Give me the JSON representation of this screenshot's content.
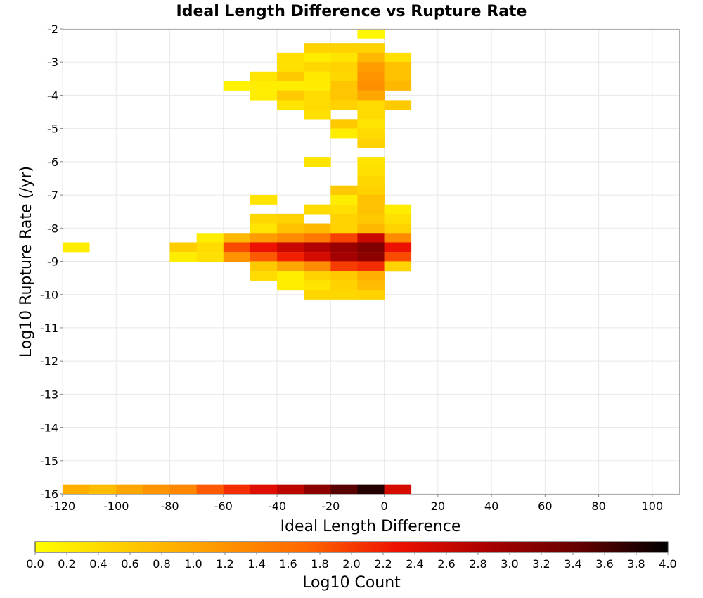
{
  "chart_data": {
    "type": "heatmap",
    "title": "Ideal Length Difference vs Rupture Rate",
    "xlabel": "Ideal Length Difference",
    "ylabel": "Log10 Rupture Rate (/yr)",
    "xlim": [
      -120,
      110
    ],
    "ylim": [
      -16,
      -2
    ],
    "x_ticks": [
      "-120",
      "-100",
      "-80",
      "-60",
      "-40",
      "-20",
      "0",
      "20",
      "40",
      "60",
      "80",
      "100"
    ],
    "x_tick_values": [
      -120,
      -100,
      -80,
      -60,
      -40,
      -20,
      0,
      20,
      40,
      60,
      80,
      100
    ],
    "y_ticks": [
      "-2",
      "-3",
      "-4",
      "-5",
      "-6",
      "-7",
      "-8",
      "-9",
      "-10",
      "-11",
      "-12",
      "-13",
      "-14",
      "-15",
      "-16"
    ],
    "y_tick_values": [
      -2,
      -3,
      -4,
      -5,
      -6,
      -7,
      -8,
      -9,
      -10,
      -11,
      -12,
      -13,
      -14,
      -15,
      -16
    ],
    "grid": true,
    "x_bin_width": 10,
    "y_bin_height": 0.2857,
    "colorbar": {
      "label": "Log10 Count",
      "min": 0.0,
      "max": 4.0,
      "ticks": [
        "0.0",
        "0.2",
        "0.4",
        "0.6",
        "0.8",
        "1.0",
        "1.2",
        "1.4",
        "1.6",
        "1.8",
        "2.0",
        "2.2",
        "2.4",
        "2.6",
        "2.8",
        "3.0",
        "3.2",
        "3.4",
        "3.6",
        "3.8",
        "4.0"
      ],
      "tick_values": [
        0.0,
        0.2,
        0.4,
        0.6,
        0.8,
        1.0,
        1.2,
        1.4,
        1.6,
        1.8,
        2.0,
        2.2,
        2.4,
        2.6,
        2.8,
        3.0,
        3.2,
        3.4,
        3.6,
        3.8,
        4.0
      ],
      "colormap": [
        "#ffff00",
        "#ffcc00",
        "#ff9900",
        "#ff6600",
        "#ee1100",
        "#aa0000",
        "#660000",
        "#000000"
      ]
    },
    "cells": [
      {
        "x": -10,
        "y": -2.14,
        "v": 0.1
      },
      {
        "x": -30,
        "y": -2.57,
        "v": 0.5
      },
      {
        "x": -20,
        "y": -2.57,
        "v": 0.5
      },
      {
        "x": -10,
        "y": -2.57,
        "v": 0.5
      },
      {
        "x": -40,
        "y": -2.86,
        "v": 0.35
      },
      {
        "x": -30,
        "y": -2.86,
        "v": 0.2
      },
      {
        "x": -20,
        "y": -2.86,
        "v": 0.3
      },
      {
        "x": -10,
        "y": -2.86,
        "v": 0.8
      },
      {
        "x": 0,
        "y": -2.86,
        "v": 0.35
      },
      {
        "x": -40,
        "y": -3.14,
        "v": 0.35
      },
      {
        "x": -30,
        "y": -3.14,
        "v": 0.45
      },
      {
        "x": -20,
        "y": -3.14,
        "v": 0.5
      },
      {
        "x": -10,
        "y": -3.14,
        "v": 1.1
      },
      {
        "x": 0,
        "y": -3.14,
        "v": 0.7
      },
      {
        "x": -50,
        "y": -3.43,
        "v": 0.3
      },
      {
        "x": -40,
        "y": -3.43,
        "v": 0.6
      },
      {
        "x": -30,
        "y": -3.43,
        "v": 0.25
      },
      {
        "x": -20,
        "y": -3.43,
        "v": 0.45
      },
      {
        "x": -10,
        "y": -3.43,
        "v": 1.2
      },
      {
        "x": 0,
        "y": -3.43,
        "v": 0.7
      },
      {
        "x": -60,
        "y": -3.71,
        "v": 0.15
      },
      {
        "x": -50,
        "y": -3.71,
        "v": 0.2
      },
      {
        "x": -40,
        "y": -3.71,
        "v": 0.2
      },
      {
        "x": -30,
        "y": -3.71,
        "v": 0.2
      },
      {
        "x": -20,
        "y": -3.71,
        "v": 0.65
      },
      {
        "x": -10,
        "y": -3.71,
        "v": 1.25
      },
      {
        "x": 0,
        "y": -3.71,
        "v": 0.8
      },
      {
        "x": -50,
        "y": -4.0,
        "v": 0.2
      },
      {
        "x": -40,
        "y": -4.0,
        "v": 0.6
      },
      {
        "x": -30,
        "y": -4.0,
        "v": 0.4
      },
      {
        "x": -20,
        "y": -4.0,
        "v": 0.65
      },
      {
        "x": -10,
        "y": -4.0,
        "v": 1.0
      },
      {
        "x": -40,
        "y": -4.29,
        "v": 0.3
      },
      {
        "x": -30,
        "y": -4.29,
        "v": 0.4
      },
      {
        "x": -20,
        "y": -4.29,
        "v": 0.5
      },
      {
        "x": -10,
        "y": -4.29,
        "v": 0.4
      },
      {
        "x": 0,
        "y": -4.29,
        "v": 0.6
      },
      {
        "x": -30,
        "y": -4.57,
        "v": 0.35
      },
      {
        "x": -10,
        "y": -4.57,
        "v": 0.4
      },
      {
        "x": -20,
        "y": -4.86,
        "v": 0.6
      },
      {
        "x": -10,
        "y": -4.86,
        "v": 0.3
      },
      {
        "x": -20,
        "y": -5.14,
        "v": 0.2
      },
      {
        "x": -10,
        "y": -5.14,
        "v": 0.4
      },
      {
        "x": -10,
        "y": -5.43,
        "v": 0.5
      },
      {
        "x": -30,
        "y": -6.0,
        "v": 0.3
      },
      {
        "x": -10,
        "y": -6.0,
        "v": 0.3
      },
      {
        "x": -10,
        "y": -6.29,
        "v": 0.35
      },
      {
        "x": -10,
        "y": -6.57,
        "v": 0.45
      },
      {
        "x": -20,
        "y": -6.86,
        "v": 0.6
      },
      {
        "x": -10,
        "y": -6.86,
        "v": 0.5
      },
      {
        "x": -50,
        "y": -7.14,
        "v": 0.3
      },
      {
        "x": -20,
        "y": -7.14,
        "v": 0.2
      },
      {
        "x": -10,
        "y": -7.14,
        "v": 0.7
      },
      {
        "x": -30,
        "y": -7.43,
        "v": 0.4
      },
      {
        "x": -20,
        "y": -7.43,
        "v": 0.35
      },
      {
        "x": -10,
        "y": -7.43,
        "v": 0.7
      },
      {
        "x": 0,
        "y": -7.43,
        "v": 0.2
      },
      {
        "x": -50,
        "y": -7.71,
        "v": 0.45
      },
      {
        "x": -40,
        "y": -7.71,
        "v": 0.5
      },
      {
        "x": -20,
        "y": -7.71,
        "v": 0.5
      },
      {
        "x": -10,
        "y": -7.71,
        "v": 0.6
      },
      {
        "x": 0,
        "y": -7.71,
        "v": 0.35
      },
      {
        "x": -50,
        "y": -8.0,
        "v": 0.3
      },
      {
        "x": -40,
        "y": -8.0,
        "v": 0.7
      },
      {
        "x": -30,
        "y": -8.0,
        "v": 0.8
      },
      {
        "x": -20,
        "y": -8.0,
        "v": 0.5
      },
      {
        "x": -10,
        "y": -8.0,
        "v": 0.8
      },
      {
        "x": 0,
        "y": -8.0,
        "v": 0.5
      },
      {
        "x": -70,
        "y": -8.29,
        "v": 0.2
      },
      {
        "x": -60,
        "y": -8.29,
        "v": 0.8
      },
      {
        "x": -50,
        "y": -8.29,
        "v": 1.1
      },
      {
        "x": -40,
        "y": -8.29,
        "v": 1.3
      },
      {
        "x": -30,
        "y": -8.29,
        "v": 1.5
      },
      {
        "x": -20,
        "y": -8.29,
        "v": 1.95
      },
      {
        "x": -10,
        "y": -8.29,
        "v": 2.6
      },
      {
        "x": 0,
        "y": -8.29,
        "v": 1.3
      },
      {
        "x": -120,
        "y": -8.57,
        "v": 0.2
      },
      {
        "x": -80,
        "y": -8.57,
        "v": 0.55
      },
      {
        "x": -70,
        "y": -8.57,
        "v": 0.4
      },
      {
        "x": -60,
        "y": -8.57,
        "v": 1.9
      },
      {
        "x": -50,
        "y": -8.57,
        "v": 2.3
      },
      {
        "x": -40,
        "y": -8.57,
        "v": 2.6
      },
      {
        "x": -30,
        "y": -8.57,
        "v": 2.8
      },
      {
        "x": -20,
        "y": -8.57,
        "v": 3.0
      },
      {
        "x": -10,
        "y": -8.57,
        "v": 3.2
      },
      {
        "x": 0,
        "y": -8.57,
        "v": 2.3
      },
      {
        "x": -80,
        "y": -8.86,
        "v": 0.2
      },
      {
        "x": -70,
        "y": -8.86,
        "v": 0.35
      },
      {
        "x": -60,
        "y": -8.86,
        "v": 1.2
      },
      {
        "x": -50,
        "y": -8.86,
        "v": 1.8
      },
      {
        "x": -40,
        "y": -8.86,
        "v": 2.2
      },
      {
        "x": -30,
        "y": -8.86,
        "v": 2.5
      },
      {
        "x": -20,
        "y": -8.86,
        "v": 2.9
      },
      {
        "x": -10,
        "y": -8.86,
        "v": 3.1
      },
      {
        "x": 0,
        "y": -8.86,
        "v": 1.9
      },
      {
        "x": -50,
        "y": -9.14,
        "v": 0.6
      },
      {
        "x": -40,
        "y": -9.14,
        "v": 1.0
      },
      {
        "x": -30,
        "y": -9.14,
        "v": 1.3
      },
      {
        "x": -20,
        "y": -9.14,
        "v": 2.0
      },
      {
        "x": -10,
        "y": -9.14,
        "v": 2.1
      },
      {
        "x": 0,
        "y": -9.14,
        "v": 0.5
      },
      {
        "x": -50,
        "y": -9.43,
        "v": 0.4
      },
      {
        "x": -40,
        "y": -9.43,
        "v": 0.2
      },
      {
        "x": -30,
        "y": -9.43,
        "v": 0.5
      },
      {
        "x": -20,
        "y": -9.43,
        "v": 0.6
      },
      {
        "x": -10,
        "y": -9.43,
        "v": 0.9
      },
      {
        "x": -40,
        "y": -9.71,
        "v": 0.2
      },
      {
        "x": -30,
        "y": -9.71,
        "v": 0.3
      },
      {
        "x": -20,
        "y": -9.71,
        "v": 0.5
      },
      {
        "x": -10,
        "y": -9.71,
        "v": 0.75
      },
      {
        "x": -30,
        "y": -10.0,
        "v": 0.45
      },
      {
        "x": -20,
        "y": -10.0,
        "v": 0.45
      },
      {
        "x": -10,
        "y": -10.0,
        "v": 0.5
      },
      {
        "x": -120,
        "y": -15.86,
        "v": 0.9
      },
      {
        "x": -110,
        "y": -15.86,
        "v": 0.75
      },
      {
        "x": -100,
        "y": -15.86,
        "v": 1.0
      },
      {
        "x": -90,
        "y": -15.86,
        "v": 1.2
      },
      {
        "x": -80,
        "y": -15.86,
        "v": 1.35
      },
      {
        "x": -70,
        "y": -15.86,
        "v": 1.8
      },
      {
        "x": -60,
        "y": -15.86,
        "v": 2.1
      },
      {
        "x": -50,
        "y": -15.86,
        "v": 2.4
      },
      {
        "x": -40,
        "y": -15.86,
        "v": 2.7
      },
      {
        "x": -30,
        "y": -15.86,
        "v": 3.1
      },
      {
        "x": -20,
        "y": -15.86,
        "v": 3.5
      },
      {
        "x": -10,
        "y": -15.86,
        "v": 3.8
      },
      {
        "x": 0,
        "y": -15.86,
        "v": 2.5
      }
    ]
  }
}
